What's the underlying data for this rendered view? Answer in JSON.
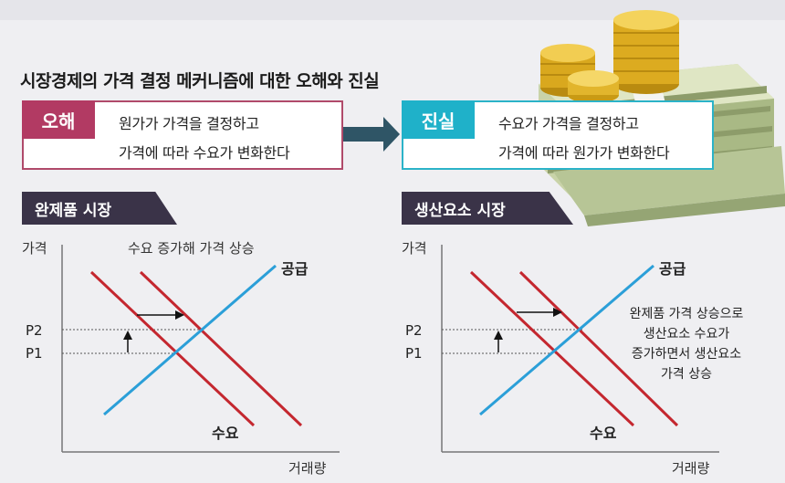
{
  "headline": "시장경제의 가격 결정 메커니즘에 대한 오해와 진실",
  "myth": {
    "tag": "오해",
    "line1": "원가가 가격을 결정하고",
    "line2": "가격에 따라 수요가 변화한다"
  },
  "truth": {
    "tag": "진실",
    "line1": "수요가 가격을 결정하고",
    "line2": "가격에 따라 원가가 변화한다"
  },
  "left_chart": {
    "tab": "완제품 시장",
    "y_axis": "가격",
    "x_axis": "거래량",
    "p2": "P2",
    "p1": "P1",
    "supply": "공급",
    "demand": "수요",
    "annotation": "수요 증가해 가격 상승"
  },
  "right_chart": {
    "tab": "생산요소 시장",
    "y_axis": "가격",
    "x_axis": "거래량",
    "p2": "P2",
    "p1": "P1",
    "supply": "공급",
    "demand": "수요",
    "annotation_lines": [
      "완제품 가격 상승으로",
      "생산요소 수요가",
      "증가하면서 생산요소",
      "가격 상승"
    ]
  },
  "colors": {
    "supply": "#2b9fd8",
    "demand": "#c4272f",
    "myth": "#b23a63",
    "truth": "#1fb1c9",
    "tab": "#3a3348"
  }
}
